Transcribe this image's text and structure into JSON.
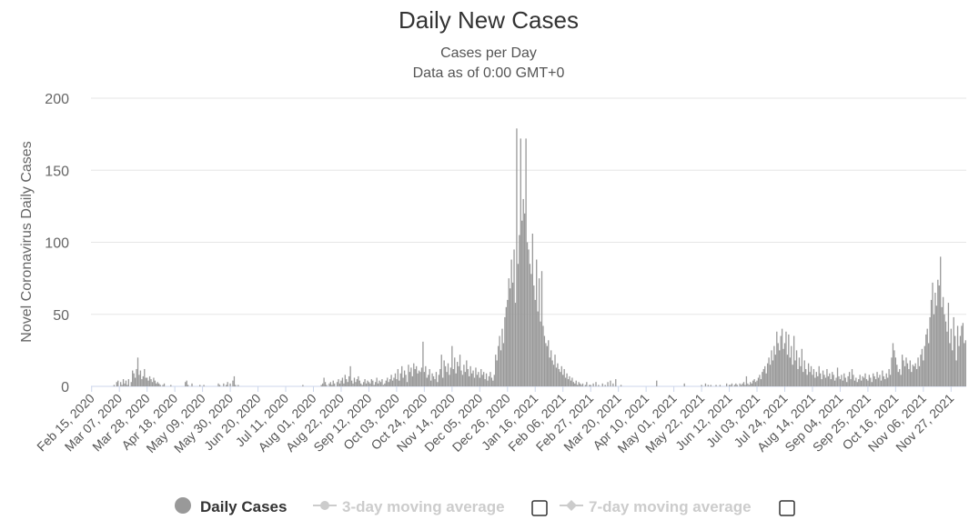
{
  "chart_data": {
    "type": "bar",
    "title": "Daily New Cases",
    "subtitle": [
      "Cases per Day",
      "Data as of 0:00 GMT+0"
    ],
    "y_label": "Novel Coronavirus Daily Cases",
    "ylim": [
      0,
      200
    ],
    "yticks": [
      0,
      50,
      100,
      150,
      200
    ],
    "grid": true,
    "inactive_legend": [
      "3-day moving average",
      "7-day moving average"
    ],
    "categories": [
      "Feb 15, 2020",
      null,
      null,
      null,
      null,
      null,
      null,
      null,
      null,
      null,
      null,
      null,
      null,
      null,
      null,
      null,
      null,
      null,
      null,
      null,
      null,
      "Mar 07, 2020",
      null,
      null,
      null,
      null,
      null,
      null,
      null,
      null,
      null,
      null,
      null,
      null,
      null,
      null,
      null,
      null,
      null,
      null,
      null,
      null,
      "Mar 28, 2020",
      null,
      null,
      null,
      null,
      null,
      null,
      null,
      null,
      null,
      null,
      null,
      null,
      null,
      null,
      null,
      null,
      null,
      null,
      null,
      null,
      "Apr 18, 2020",
      null,
      null,
      null,
      null,
      null,
      null,
      null,
      null,
      null,
      null,
      null,
      null,
      null,
      null,
      null,
      null,
      null,
      null,
      null,
      null,
      "May 09, 2020",
      null,
      null,
      null,
      null,
      null,
      null,
      null,
      null,
      null,
      null,
      null,
      null,
      null,
      null,
      null,
      null,
      null,
      null,
      null,
      null,
      "May 30, 2020",
      null,
      null,
      null,
      null,
      null,
      null,
      null,
      null,
      null,
      null,
      null,
      null,
      null,
      null,
      null,
      null,
      null,
      null,
      null,
      null,
      "Jun 20, 2020",
      null,
      null,
      null,
      null,
      null,
      null,
      null,
      null,
      null,
      null,
      null,
      null,
      null,
      null,
      null,
      null,
      null,
      null,
      null,
      null,
      "Jul 11, 2020",
      null,
      null,
      null,
      null,
      null,
      null,
      null,
      null,
      null,
      null,
      null,
      null,
      null,
      null,
      null,
      null,
      null,
      null,
      null,
      null,
      "Aug 01, 2020",
      null,
      null,
      null,
      null,
      null,
      null,
      null,
      null,
      null,
      null,
      null,
      null,
      null,
      null,
      null,
      null,
      null,
      null,
      null,
      null,
      "Aug 22, 2020",
      null,
      null,
      null,
      null,
      null,
      null,
      null,
      null,
      null,
      null,
      null,
      null,
      null,
      null,
      null,
      null,
      null,
      null,
      null,
      null,
      "Sep 12, 2020",
      null,
      null,
      null,
      null,
      null,
      null,
      null,
      null,
      null,
      null,
      null,
      null,
      null,
      null,
      null,
      null,
      null,
      null,
      null,
      null,
      "Oct 03, 2020",
      null,
      null,
      null,
      null,
      null,
      null,
      null,
      null,
      null,
      null,
      null,
      null,
      null,
      null,
      null,
      null,
      null,
      null,
      null,
      null,
      "Oct 24, 2020",
      null,
      null,
      null,
      null,
      null,
      null,
      null,
      null,
      null,
      null,
      null,
      null,
      null,
      null,
      null,
      null,
      null,
      null,
      null,
      null,
      "Nov 14, 2020",
      null,
      null,
      null,
      null,
      null,
      null,
      null,
      null,
      null,
      null,
      null,
      null,
      null,
      null,
      null,
      null,
      null,
      null,
      null,
      null,
      "Dec 05, 2020",
      null,
      null,
      null,
      null,
      null,
      null,
      null,
      null,
      null,
      null,
      null,
      null,
      null,
      null,
      null,
      null,
      null,
      null,
      null,
      null,
      "Dec 26, 2020",
      null,
      null,
      null,
      null,
      null,
      null,
      null,
      null,
      null,
      null,
      null,
      null,
      null,
      null,
      null,
      null,
      null,
      null,
      null,
      null,
      "Jan 16, 2021",
      null,
      null,
      null,
      null,
      null,
      null,
      null,
      null,
      null,
      null,
      null,
      null,
      null,
      null,
      null,
      null,
      null,
      null,
      null,
      null,
      "Feb 06, 2021",
      null,
      null,
      null,
      null,
      null,
      null,
      null,
      null,
      null,
      null,
      null,
      null,
      null,
      null,
      null,
      null,
      null,
      null,
      null,
      null,
      "Feb 27, 2021",
      null,
      null,
      null,
      null,
      null,
      null,
      null,
      null,
      null,
      null,
      null,
      null,
      null,
      null,
      null,
      null,
      null,
      null,
      null,
      null,
      "Mar 20, 2021",
      null,
      null,
      null,
      null,
      null,
      null,
      null,
      null,
      null,
      null,
      null,
      null,
      null,
      null,
      null,
      null,
      null,
      null,
      null,
      null,
      "Apr 10, 2021",
      null,
      null,
      null,
      null,
      null,
      null,
      null,
      null,
      null,
      null,
      null,
      null,
      null,
      null,
      null,
      null,
      null,
      null,
      null,
      null,
      "May 01, 2021",
      null,
      null,
      null,
      null,
      null,
      null,
      null,
      null,
      null,
      null,
      null,
      null,
      null,
      null,
      null,
      null,
      null,
      null,
      null,
      null,
      "May 22, 2021",
      null,
      null,
      null,
      null,
      null,
      null,
      null,
      null,
      null,
      null,
      null,
      null,
      null,
      null,
      null,
      null,
      null,
      null,
      null,
      null,
      "Jun 12, 2021",
      null,
      null,
      null,
      null,
      null,
      null,
      null,
      null,
      null,
      null,
      null,
      null,
      null,
      null,
      null,
      null,
      null,
      null,
      null,
      null,
      "Jul 03, 2021",
      null,
      null,
      null,
      null,
      null,
      null,
      null,
      null,
      null,
      null,
      null,
      null,
      null,
      null,
      null,
      null,
      null,
      null,
      null,
      null,
      "Jul 24, 2021",
      null,
      null,
      null,
      null,
      null,
      null,
      null,
      null,
      null,
      null,
      null,
      null,
      null,
      null,
      null,
      null,
      null,
      null,
      null,
      null,
      "Aug 14, 2021",
      null,
      null,
      null,
      null,
      null,
      null,
      null,
      null,
      null,
      null,
      null,
      null,
      null,
      null,
      null,
      null,
      null,
      null,
      null,
      null,
      "Sep 04, 2021",
      null,
      null,
      null,
      null,
      null,
      null,
      null,
      null,
      null,
      null,
      null,
      null,
      null,
      null,
      null,
      null,
      null,
      null,
      null,
      null,
      "Sep 25, 2021",
      null,
      null,
      null,
      null,
      null,
      null,
      null,
      null,
      null,
      null,
      null,
      null,
      null,
      null,
      null,
      null,
      null,
      null,
      null,
      null,
      "Oct 16, 2021",
      null,
      null,
      null,
      null,
      null,
      null,
      null,
      null,
      null,
      null,
      null,
      null,
      null,
      null,
      null,
      null,
      null,
      null,
      null,
      null,
      "Nov 06, 2021",
      null,
      null,
      null,
      null,
      null,
      null,
      null,
      null,
      null,
      null,
      null,
      null,
      null,
      null,
      null,
      null,
      null,
      null,
      null,
      null,
      "Nov 27, 2021",
      null,
      null,
      null,
      null,
      null,
      null,
      null,
      null,
      null,
      null,
      null
    ],
    "series": [
      {
        "name": "Daily Cases",
        "color": "#999999",
        "values": [
          0,
          0,
          0,
          0,
          0,
          0,
          0,
          0,
          0,
          0,
          0,
          0,
          0,
          0,
          0,
          0,
          0,
          1,
          0,
          3,
          4,
          0,
          3,
          1,
          5,
          2,
          4,
          1,
          5,
          0,
          3,
          11,
          9,
          6,
          12,
          20,
          8,
          11,
          5,
          7,
          12,
          6,
          6,
          4,
          7,
          5,
          3,
          6,
          4,
          2,
          3,
          2,
          1,
          0,
          1,
          2,
          0,
          0,
          0,
          0,
          1,
          0,
          0,
          0,
          0,
          0,
          0,
          0,
          0,
          0,
          0,
          3,
          4,
          1,
          0,
          0,
          2,
          0,
          0,
          0,
          0,
          0,
          1,
          0,
          0,
          1,
          0,
          0,
          0,
          0,
          0,
          0,
          0,
          0,
          0,
          0,
          2,
          1,
          0,
          0,
          2,
          0,
          1,
          3,
          0,
          2,
          0,
          4,
          7,
          1,
          0,
          1,
          0,
          0,
          0,
          0,
          0,
          0,
          0,
          0,
          0,
          0,
          0,
          0,
          0,
          0,
          0,
          0,
          0,
          0,
          0,
          0,
          0,
          0,
          0,
          0,
          0,
          0,
          0,
          0,
          0,
          0,
          0,
          0,
          0,
          0,
          0,
          0,
          0,
          0,
          0,
          0,
          0,
          0,
          0,
          0,
          0,
          0,
          0,
          0,
          1,
          0,
          0,
          0,
          0,
          0,
          0,
          0,
          0,
          0,
          0,
          0,
          0,
          0,
          1,
          2,
          6,
          3,
          1,
          0,
          2,
          3,
          1,
          4,
          2,
          0,
          3,
          5,
          2,
          4,
          6,
          2,
          8,
          5,
          3,
          7,
          14,
          4,
          2,
          6,
          3,
          5,
          7,
          4,
          2,
          1,
          3,
          5,
          2,
          4,
          3,
          2,
          5,
          4,
          1,
          3,
          6,
          2,
          4,
          3,
          5,
          1,
          2,
          4,
          6,
          3,
          5,
          8,
          4,
          6,
          9,
          5,
          12,
          4,
          9,
          14,
          6,
          11,
          8,
          3,
          15,
          10,
          13,
          7,
          16,
          12,
          14,
          9,
          11,
          10,
          13,
          31,
          10,
          14,
          6,
          8,
          12,
          4,
          9,
          7,
          5,
          10,
          3,
          8,
          12,
          22,
          6,
          18,
          14,
          10,
          16,
          8,
          13,
          28,
          12,
          20,
          9,
          17,
          14,
          22,
          11,
          8,
          15,
          10,
          18,
          12,
          7,
          14,
          9,
          11,
          6,
          13,
          8,
          10,
          6,
          12,
          8,
          10,
          5,
          9,
          4,
          7,
          10,
          6,
          4,
          8,
          22,
          18,
          28,
          35,
          25,
          40,
          30,
          48,
          55,
          60,
          75,
          68,
          88,
          72,
          95,
          58,
          179,
          85,
          105,
          172,
          115,
          130,
          120,
          172,
          100,
          95,
          85,
          78,
          106,
          70,
          60,
          88,
          52,
          75,
          45,
          80,
          42,
          35,
          30,
          28,
          32,
          20,
          25,
          18,
          15,
          22,
          13,
          16,
          12,
          10,
          14,
          8,
          12,
          6,
          9,
          5,
          7,
          4,
          6,
          3,
          2,
          4,
          1,
          3,
          2,
          1,
          2,
          0,
          1,
          3,
          0,
          1,
          1,
          0,
          2,
          0,
          3,
          0,
          1,
          0,
          0,
          2,
          0,
          1,
          0,
          3,
          0,
          4,
          0,
          2,
          0,
          5,
          0,
          0,
          0,
          1,
          0,
          0,
          0,
          0,
          0,
          0,
          0,
          0,
          0,
          0,
          0,
          0,
          0,
          0,
          0,
          0,
          0,
          0,
          0,
          0,
          0,
          0,
          0,
          0,
          0,
          0,
          4,
          0,
          0,
          0,
          0,
          0,
          0,
          0,
          0,
          0,
          0,
          0,
          0,
          0,
          0,
          0,
          0,
          0,
          0,
          0,
          0,
          2,
          0,
          0,
          0,
          0,
          0,
          0,
          0,
          0,
          0,
          0,
          0,
          0,
          1,
          0,
          0,
          2,
          0,
          1,
          0,
          1,
          0,
          0,
          0,
          1,
          0,
          0,
          1,
          0,
          0,
          0,
          0,
          2,
          0,
          1,
          1,
          2,
          0,
          1,
          2,
          1,
          0,
          2,
          1,
          2,
          3,
          1,
          7,
          2,
          1,
          3,
          2,
          4,
          5,
          3,
          4,
          6,
          8,
          5,
          10,
          12,
          14,
          9,
          16,
          20,
          15,
          25,
          18,
          28,
          22,
          38,
          30,
          25,
          35,
          40,
          26,
          30,
          38,
          22,
          36,
          20,
          28,
          15,
          35,
          18,
          25,
          12,
          20,
          14,
          26,
          10,
          18,
          12,
          8,
          16,
          10,
          14,
          8,
          12,
          6,
          10,
          7,
          14,
          9,
          5,
          11,
          8,
          6,
          12,
          7,
          9,
          5,
          10,
          8,
          4,
          6,
          13,
          7,
          5,
          8,
          4,
          9,
          6,
          3,
          7,
          10,
          5,
          12,
          8,
          4,
          6,
          3,
          5,
          8,
          4,
          7,
          6,
          9,
          5,
          4,
          8,
          6,
          3,
          9,
          7,
          5,
          10,
          6,
          8,
          4,
          11,
          7,
          5,
          9,
          6,
          12,
          8,
          20,
          30,
          25,
          20,
          15,
          10,
          12,
          8,
          22,
          18,
          14,
          20,
          16,
          12,
          18,
          10,
          15,
          14,
          16,
          12,
          20,
          14,
          22,
          26,
          18,
          28,
          36,
          40,
          30,
          48,
          60,
          72,
          50,
          65,
          56,
          74,
          70,
          90,
          55,
          62,
          50,
          45,
          38,
          58,
          30,
          40,
          25,
          48,
          35,
          18,
          42,
          28,
          35,
          42,
          44,
          30,
          32
        ]
      }
    ]
  }
}
